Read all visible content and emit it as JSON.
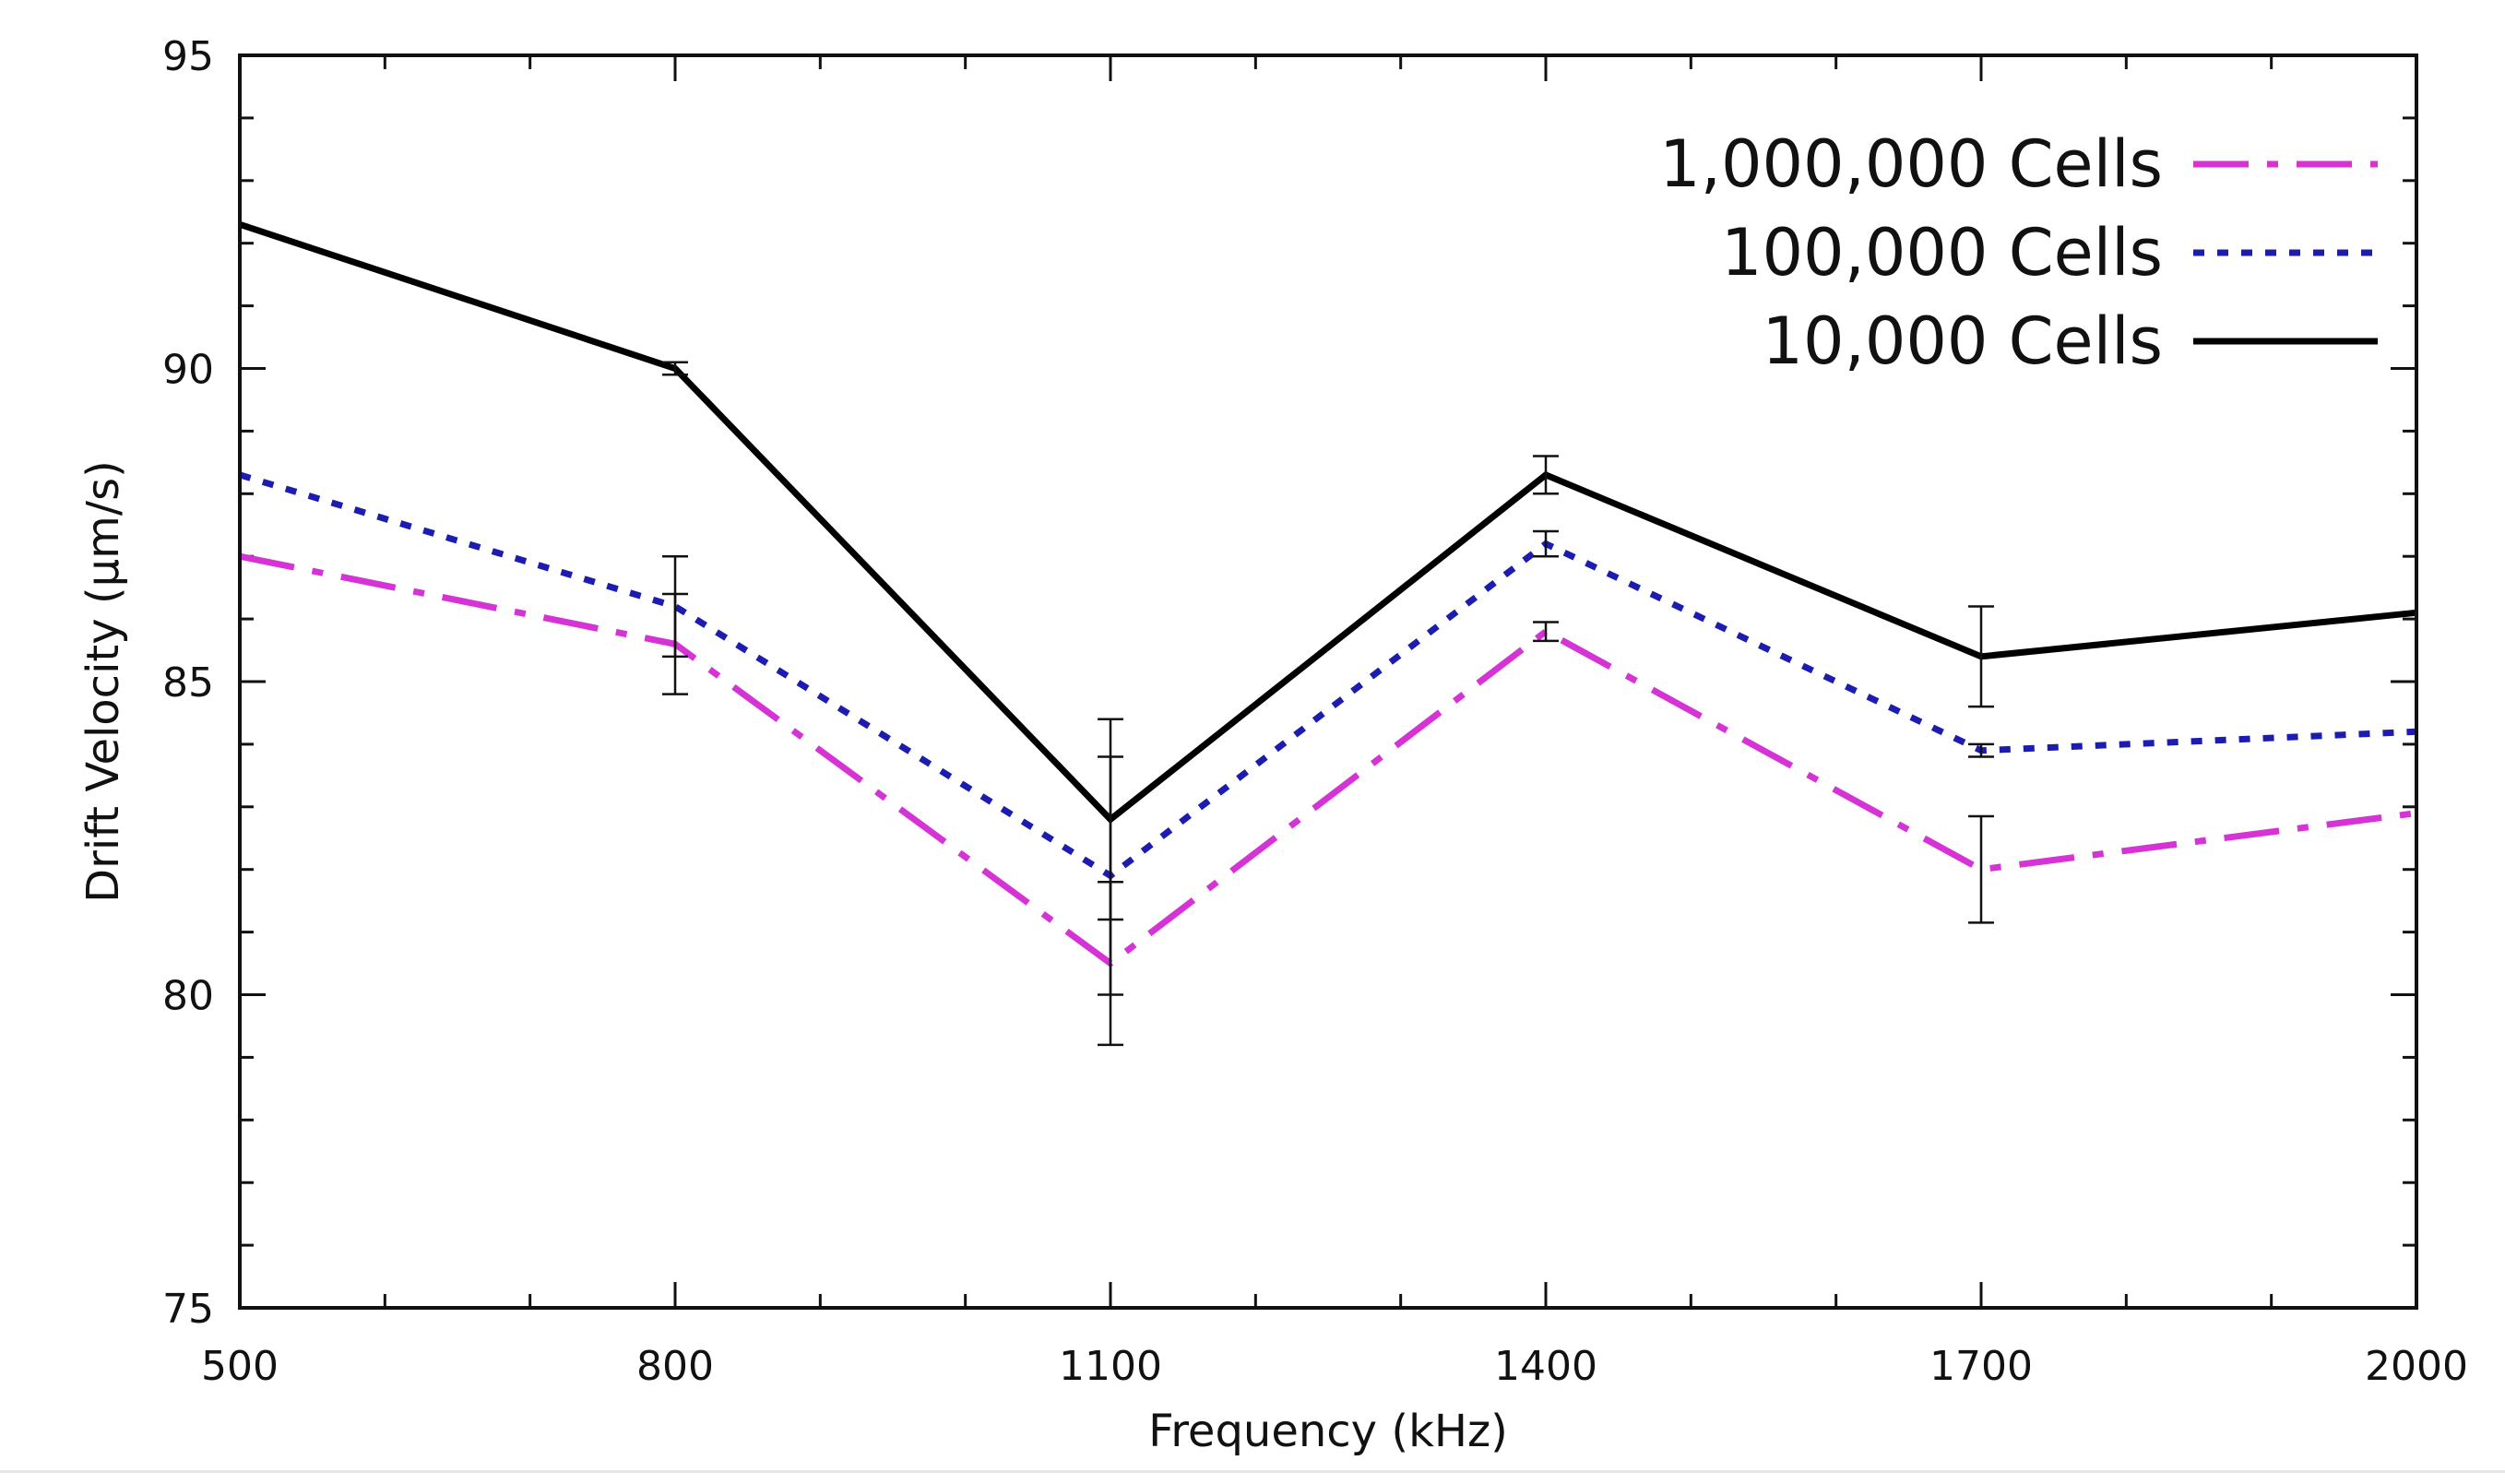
{
  "chart_data": {
    "type": "line",
    "title": "",
    "xlabel": "Frequency (kHz)",
    "ylabel": "Drift Velocity (µm/s)",
    "xlim": [
      500,
      2000
    ],
    "ylim": [
      75,
      95
    ],
    "x": [
      500,
      800,
      1100,
      1400,
      1700,
      2000
    ],
    "xticks": [
      "500",
      "800",
      "1100",
      "1400",
      "1700",
      "2000"
    ],
    "yticks": [
      "75",
      "80",
      "85",
      "90",
      "95"
    ],
    "xtick_values": [
      500,
      800,
      1100,
      1400,
      1700,
      2000
    ],
    "ytick_values": [
      75,
      80,
      85,
      90,
      95
    ],
    "x_minor_step": 100,
    "y_minor_step": 1,
    "grid": false,
    "legend_position": "top-right",
    "series": [
      {
        "name": "1,000,000 Cells",
        "color": "#d633d6",
        "style": "long-dash",
        "values": [
          87.0,
          85.6,
          80.5,
          85.8,
          82.0,
          82.9
        ],
        "errors": [
          0,
          0.8,
          1.3,
          0.15,
          0.85,
          0
        ]
      },
      {
        "name": "100,000 Cells",
        "color": "#1c1cb0",
        "style": "dotted",
        "values": [
          88.3,
          86.2,
          81.9,
          87.2,
          83.9,
          84.2
        ],
        "errors": [
          0,
          0.8,
          1.9,
          0.2,
          0.1,
          0
        ]
      },
      {
        "name": "10,000 Cells",
        "color": "#000000",
        "style": "solid",
        "values": [
          92.3,
          90.0,
          82.8,
          88.3,
          85.4,
          86.1
        ],
        "errors": [
          0,
          0.1,
          1.6,
          0.3,
          0.8,
          0
        ]
      }
    ]
  }
}
